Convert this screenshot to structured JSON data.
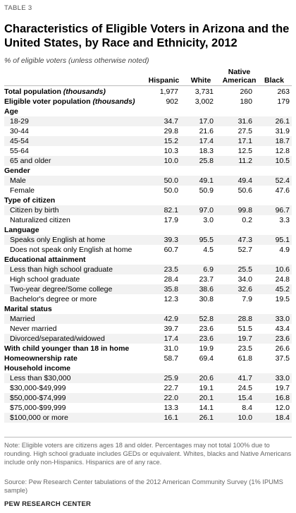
{
  "table_label": "TABLE 3",
  "title": "Characteristics of Eligible Voters in Arizona and the United States, by Race and Ethnicity, 2012",
  "subtitle": "% of eligible voters (unless otherwise noted)",
  "columns": {
    "hispanic": "Hispanic",
    "white": "White",
    "native_line1": "Native",
    "native_line2": "American",
    "black": "Black"
  },
  "rows": [
    {
      "kind": "total",
      "label": "Total population",
      "label_italic": "(thousands)",
      "values": [
        "1,977",
        "3,731",
        "260",
        "263"
      ]
    },
    {
      "kind": "total",
      "label": "Eligible voter population",
      "label_italic": "(thousands)",
      "values": [
        "902",
        "3,002",
        "180",
        "179"
      ]
    },
    {
      "kind": "section",
      "label": "Age"
    },
    {
      "kind": "sub",
      "label": "18-29",
      "values": [
        "34.7",
        "17.0",
        "31.6",
        "26.1"
      ]
    },
    {
      "kind": "sub",
      "label": "30-44",
      "values": [
        "29.8",
        "21.6",
        "27.5",
        "31.9"
      ]
    },
    {
      "kind": "sub",
      "label": "45-54",
      "values": [
        "15.2",
        "17.4",
        "17.1",
        "18.7"
      ]
    },
    {
      "kind": "sub",
      "label": "55-64",
      "values": [
        "10.3",
        "18.3",
        "12.5",
        "12.8"
      ]
    },
    {
      "kind": "sub",
      "label": "65 and older",
      "values": [
        "10.0",
        "25.8",
        "11.2",
        "10.5"
      ]
    },
    {
      "kind": "section",
      "label": "Gender"
    },
    {
      "kind": "sub",
      "label": "Male",
      "values": [
        "50.0",
        "49.1",
        "49.4",
        "52.4"
      ]
    },
    {
      "kind": "sub",
      "label": "Female",
      "values": [
        "50.0",
        "50.9",
        "50.6",
        "47.6"
      ]
    },
    {
      "kind": "section",
      "label": "Type of citizen"
    },
    {
      "kind": "sub",
      "label": "Citizen by birth",
      "values": [
        "82.1",
        "97.0",
        "99.8",
        "96.7"
      ]
    },
    {
      "kind": "sub",
      "label": "Naturalized citizen",
      "values": [
        "17.9",
        "3.0",
        "0.2",
        "3.3"
      ]
    },
    {
      "kind": "section",
      "label": "Language"
    },
    {
      "kind": "sub",
      "label": "Speaks only English at home",
      "values": [
        "39.3",
        "95.5",
        "47.3",
        "95.1"
      ]
    },
    {
      "kind": "sub",
      "label": "Does not speak only English at home",
      "values": [
        "60.7",
        "4.5",
        "52.7",
        "4.9"
      ]
    },
    {
      "kind": "section",
      "label": "Educational attainment"
    },
    {
      "kind": "sub",
      "label": "Less than high school graduate",
      "values": [
        "23.5",
        "6.9",
        "25.5",
        "10.6"
      ]
    },
    {
      "kind": "sub",
      "label": "High school graduate",
      "values": [
        "28.4",
        "23.7",
        "34.0",
        "24.8"
      ]
    },
    {
      "kind": "sub",
      "label": "Two-year degree/Some college",
      "values": [
        "35.8",
        "38.6",
        "32.6",
        "45.2"
      ]
    },
    {
      "kind": "sub",
      "label": "Bachelor's degree or more",
      "values": [
        "12.3",
        "30.8",
        "7.9",
        "19.5"
      ]
    },
    {
      "kind": "section",
      "label": "Marital status"
    },
    {
      "kind": "sub",
      "label": "Married",
      "values": [
        "42.9",
        "52.8",
        "28.8",
        "33.0"
      ]
    },
    {
      "kind": "sub",
      "label": "Never married",
      "values": [
        "39.7",
        "23.6",
        "51.5",
        "43.4"
      ]
    },
    {
      "kind": "sub",
      "label": "Divorced/separated/widowed",
      "values": [
        "17.4",
        "23.6",
        "19.7",
        "23.6"
      ]
    },
    {
      "kind": "total",
      "label": "With child younger than 18 in home",
      "label_italic": "",
      "values": [
        "31.0",
        "19.9",
        "23.5",
        "26.6"
      ]
    },
    {
      "kind": "total",
      "label": "Homeownership rate",
      "label_italic": "",
      "values": [
        "58.7",
        "69.4",
        "61.8",
        "37.5"
      ]
    },
    {
      "kind": "section",
      "label": "Household income"
    },
    {
      "kind": "sub",
      "label": "Less than $30,000",
      "values": [
        "25.9",
        "20.6",
        "41.7",
        "33.0"
      ]
    },
    {
      "kind": "sub",
      "label": "$30,000-$49,999",
      "values": [
        "22.7",
        "19.1",
        "24.5",
        "19.7"
      ]
    },
    {
      "kind": "sub",
      "label": "$50,000-$74,999",
      "values": [
        "22.0",
        "20.1",
        "15.4",
        "16.8"
      ]
    },
    {
      "kind": "sub",
      "label": "$75,000-$99,999",
      "values": [
        "13.3",
        "14.1",
        "8.4",
        "12.0"
      ]
    },
    {
      "kind": "sub",
      "label": "$100,000 or more",
      "values": [
        "16.1",
        "26.1",
        "10.0",
        "18.4"
      ]
    }
  ],
  "note": "Note: Eligible voters are citizens ages 18 and older. Percentages may not total 100% due to rounding. High school graduate includes GEDs or equivalent. Whites, blacks and Native Americans include only non-Hispanics. Hispanics are of any race.",
  "source": "Source: Pew Research Center tabulations of the 2012 American Community Survey (1% IPUMS sample)",
  "brand": "PEW RESEARCH CENTER"
}
